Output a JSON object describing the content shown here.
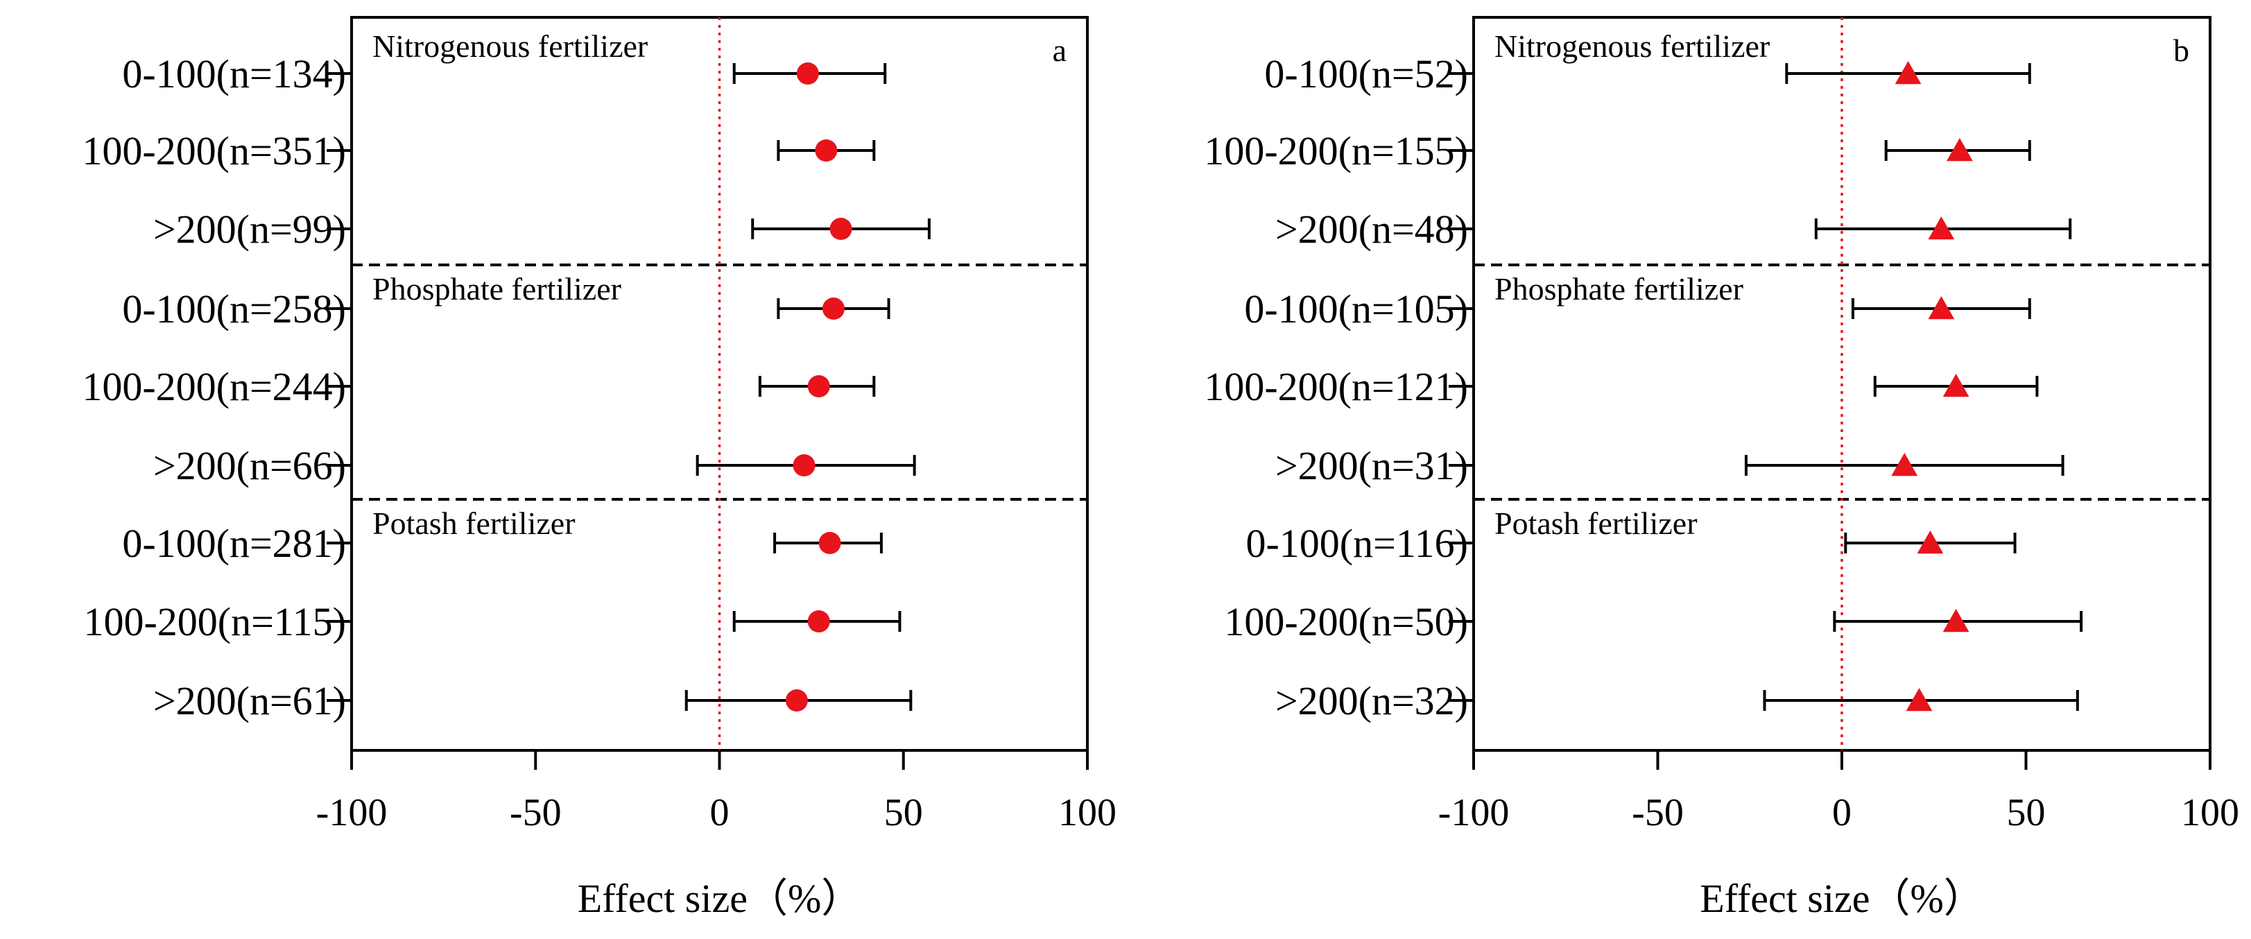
{
  "chart_data": [
    {
      "type": "forest",
      "panel": "a",
      "marker": "circle",
      "marker_color": "#e8141c",
      "xlabel": "Effect size（%）",
      "xlim": [
        -100,
        100
      ],
      "xticks": [
        -100,
        -50,
        0,
        50,
        100
      ],
      "groups": [
        {
          "name": "Nitrogenous fertilizer",
          "rows": [
            {
              "label": "0-100(n=134)",
              "mean": 24,
              "low": 4,
              "high": 45
            },
            {
              "label": "100-200(n=351)",
              "mean": 29,
              "low": 16,
              "high": 42
            },
            {
              "label": ">200(n=99)",
              "mean": 33,
              "low": 9,
              "high": 57
            }
          ]
        },
        {
          "name": "Phosphate fertilizer",
          "rows": [
            {
              "label": "0-100(n=258)",
              "mean": 31,
              "low": 16,
              "high": 46
            },
            {
              "label": "100-200(n=244)",
              "mean": 27,
              "low": 11,
              "high": 42
            },
            {
              "label": ">200(n=66)",
              "mean": 23,
              "low": -6,
              "high": 53
            }
          ]
        },
        {
          "name": "Potash fertilizer",
          "rows": [
            {
              "label": "0-100(n=281)",
              "mean": 30,
              "low": 15,
              "high": 44
            },
            {
              "label": "100-200(n=115)",
              "mean": 27,
              "low": 4,
              "high": 49
            },
            {
              "label": ">200(n=61)",
              "mean": 21,
              "low": -9,
              "high": 52
            }
          ]
        }
      ]
    },
    {
      "type": "forest",
      "panel": "b",
      "marker": "triangle",
      "marker_color": "#e8141c",
      "xlabel": "Effect size（%）",
      "xlim": [
        -100,
        100
      ],
      "xticks": [
        -100,
        -50,
        0,
        50,
        100
      ],
      "groups": [
        {
          "name": "Nitrogenous fertilizer",
          "rows": [
            {
              "label": "0-100(n=52)",
              "mean": 18,
              "low": -15,
              "high": 51
            },
            {
              "label": "100-200(n=155)",
              "mean": 32,
              "low": 12,
              "high": 51
            },
            {
              "label": ">200(n=48)",
              "mean": 27,
              "low": -7,
              "high": 62
            }
          ]
        },
        {
          "name": "Phosphate fertilizer",
          "rows": [
            {
              "label": "0-100(n=105)",
              "mean": 27,
              "low": 3,
              "high": 51
            },
            {
              "label": "100-200(n=121)",
              "mean": 31,
              "low": 9,
              "high": 53
            },
            {
              "label": ">200(n=31)",
              "mean": 17,
              "low": -26,
              "high": 60
            }
          ]
        },
        {
          "name": "Potash fertilizer",
          "rows": [
            {
              "label": "0-100(n=116)",
              "mean": 24,
              "low": 1,
              "high": 47
            },
            {
              "label": "100-200(n=50)",
              "mean": 31,
              "low": -2,
              "high": 65
            },
            {
              "label": ">200(n=32)",
              "mean": 21,
              "low": -21,
              "high": 64
            }
          ]
        }
      ]
    }
  ]
}
